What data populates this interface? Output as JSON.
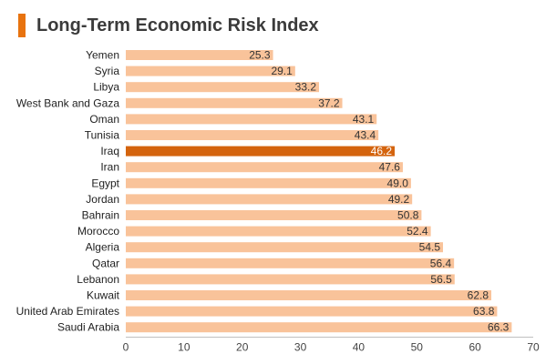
{
  "title": "Long-Term Economic Risk Index",
  "colors": {
    "accent": "#e8730f",
    "bar": "#f9c39a",
    "highlight": "#d4640e"
  },
  "chart_data": {
    "type": "bar",
    "orientation": "horizontal",
    "title": "Long-Term Economic Risk Index",
    "xlabel": "",
    "ylabel": "",
    "xlim": [
      0,
      70
    ],
    "xticks": [
      0,
      10,
      20,
      30,
      40,
      50,
      60,
      70
    ],
    "grid": false,
    "highlight": "Iraq",
    "categories": [
      "Yemen",
      "Syria",
      "Libya",
      "West Bank and Gaza",
      "Oman",
      "Tunisia",
      "Iraq",
      "Iran",
      "Egypt",
      "Jordan",
      "Bahrain",
      "Morocco",
      "Algeria",
      "Qatar",
      "Lebanon",
      "Kuwait",
      "United Arab Emirates",
      "Saudi Arabia"
    ],
    "values": [
      25.3,
      29.1,
      33.2,
      37.2,
      43.1,
      43.4,
      46.2,
      47.6,
      49.0,
      49.2,
      50.8,
      52.4,
      54.5,
      56.4,
      56.5,
      62.8,
      63.8,
      66.3
    ],
    "value_labels": [
      "25.3",
      "29.1",
      "33.2",
      "37.2",
      "43.1",
      "43.4",
      "46.2",
      "47.6",
      "49.0",
      "49.2",
      "50.8",
      "52.4",
      "54.5",
      "56.4",
      "56.5",
      "62.8",
      "63.8",
      "66.3"
    ]
  }
}
